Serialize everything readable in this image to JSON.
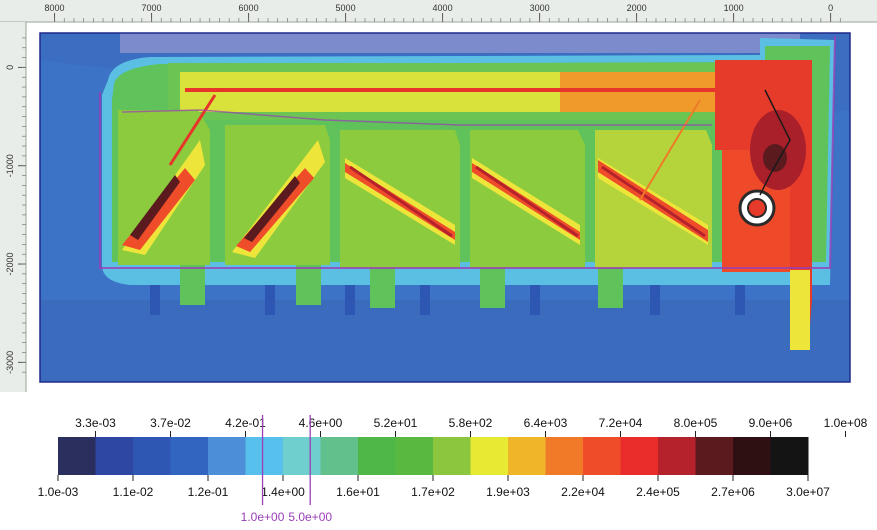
{
  "chart_data": {
    "type": "heatmap",
    "title": "",
    "xlabel": "",
    "ylabel": "",
    "x_axis": {
      "range": [
        8150,
        -200
      ],
      "reversed": true,
      "ticks": [
        8000,
        7000,
        6000,
        5000,
        4000,
        3000,
        2000,
        1000,
        0
      ],
      "tick_labels": [
        "8000",
        "7000",
        "6000",
        "5000",
        "4000",
        "3000",
        "2000",
        "1000",
        "0"
      ]
    },
    "y_axis": {
      "range": [
        350,
        -3200
      ],
      "ticks": [
        0,
        -1000,
        -2000,
        -3000
      ],
      "tick_labels": [
        "0",
        "-1000",
        "-2000",
        "-3000"
      ]
    },
    "colorbar": {
      "scale": "log",
      "range": [
        0.001,
        100000000
      ],
      "colors": [
        "#2a2f5e",
        "#2e47a3",
        "#2e56b3",
        "#3265c0",
        "#4c8ed8",
        "#58c0ec",
        "#6fcfcf",
        "#62c08c",
        "#4eb748",
        "#58b840",
        "#8cc63e",
        "#e6ea32",
        "#f0b62a",
        "#f07a28",
        "#ef4d2a",
        "#ea2c2a",
        "#b5222c",
        "#5a1a1e",
        "#2e0f12",
        "#141414"
      ],
      "labels_top": [
        "3.3e-03",
        "3.7e-02",
        "4.2e-01",
        "4.6e+00",
        "5.2e+01",
        "5.8e+02",
        "6.4e+03",
        "7.2e+04",
        "8.0e+05",
        "9.0e+06",
        "1.0e+08"
      ],
      "labels_bottom": [
        "1.0e-03",
        "1.1e-02",
        "1.2e-01",
        "1.4e+00",
        "1.6e+01",
        "1.7e+02",
        "1.9e+03",
        "2.2e+04",
        "2.4e+05",
        "2.7e+06",
        "3.0e+07"
      ],
      "contour_markers": [
        {
          "value": 1.0,
          "label": "1.0e+00",
          "color": "#9a3fb6"
        },
        {
          "value": 5.0,
          "label": "5.0e+00",
          "color": "#9a3fb6"
        }
      ]
    },
    "grid": false,
    "legend_placement": "bottom"
  }
}
